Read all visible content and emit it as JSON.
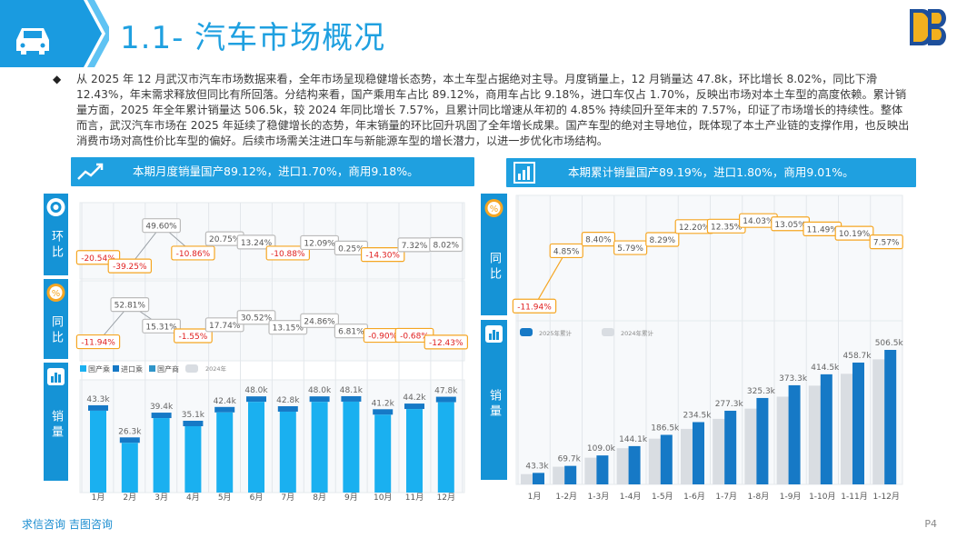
{
  "header": {
    "title": "1.1- 汽车市场概况",
    "page": "P4",
    "footer_brand": "求信咨询 吉图咨询"
  },
  "summary": "从 2025 年 12 月武汉市汽车市场数据来看，全年市场呈现稳健增长态势，本土车型占据绝对主导。月度销量上，12 月销量达 47.8k，环比增长 8.02%，同比下滑 12.43%，年末需求释放但同比有所回落。分结构来看，国产乘用车占比 89.12%，商用车占比 9.18%，进口车仅占 1.70%，反映出市场对本土车型的高度依赖。累计销量方面，2025 年全年累计销量达 506.5k，较 2024 年同比增长 7.57%，且累计同比增速从年初的 4.85% 持续回升至年末的 7.57%，印证了市场增长的持续性。整体而言，武汉汽车市场在 2025 年延续了稳健增长的态势，年末销量的环比回升巩固了全年增长成果。国产车型的绝对主导地位，既体现了本土产业链的支撑作用，也反映出消费市场对高性价比车型的偏好。后续市场需关注进口车与新能源车型的增长潜力，以进一步优化市场结构。",
  "left_panel": {
    "headline": "本期月度销量国产89.12%，进口1.70%，商用9.18%。",
    "tabs": {
      "hb": "环比",
      "tb": "同比",
      "xl": "销量"
    },
    "legend": [
      "国产乘",
      "进口乘",
      "国产商",
      "2024年"
    ]
  },
  "right_panel": {
    "headline": "本期累计销量国产89.19%，进口1.80%，商用9.01%。",
    "tabs": {
      "tb": "同比",
      "xl": "销量"
    },
    "legend": [
      "2025年累计",
      "2024年累计"
    ]
  },
  "colors": {
    "accent": "#1fa0e0",
    "bar2025": "#1679c6",
    "bar_cyan": "#1ab0f0",
    "bar2024": "#d9dde2",
    "pos": "#555555",
    "neg": "#e02020",
    "orange": "#f5a623"
  },
  "chart_data": [
    {
      "type": "line",
      "name": "monthly_mom",
      "categories": [
        "1月",
        "2月",
        "3月",
        "4月",
        "5月",
        "6月",
        "7月",
        "8月",
        "9月",
        "10月",
        "11月",
        "12月"
      ],
      "labels": [
        "-20.54%",
        "-39.25%",
        "49.60%",
        "-10.86%",
        "20.75%",
        "13.24%",
        "-10.88%",
        "12.09%",
        "0.25%",
        "-14.30%",
        "7.32%",
        "8.02%"
      ],
      "values": [
        -20.54,
        -39.25,
        49.6,
        -10.86,
        20.75,
        13.24,
        -10.88,
        12.09,
        0.25,
        -14.3,
        7.32,
        8.02
      ]
    },
    {
      "type": "line",
      "name": "monthly_yoy",
      "categories": [
        "1月",
        "2月",
        "3月",
        "4月",
        "5月",
        "6月",
        "7月",
        "8月",
        "9月",
        "10月",
        "11月",
        "12月"
      ],
      "labels": [
        "-11.94%",
        "52.81%",
        "15.31%",
        "-1.55%",
        "17.74%",
        "30.52%",
        "13.15%",
        "24.86%",
        "6.81%",
        "-0.90%",
        "-0.68%",
        "-12.43%"
      ],
      "values": [
        -11.94,
        52.81,
        15.31,
        -1.55,
        17.74,
        30.52,
        13.15,
        24.86,
        6.81,
        -0.9,
        -0.68,
        -12.43
      ]
    },
    {
      "type": "bar",
      "name": "monthly_sales",
      "categories": [
        "1月",
        "2月",
        "3月",
        "4月",
        "5月",
        "6月",
        "7月",
        "8月",
        "9月",
        "10月",
        "11月",
        "12月"
      ],
      "labels": [
        "43.3k",
        "26.3k",
        "39.4k",
        "35.1k",
        "42.4k",
        "48.0k",
        "42.8k",
        "48.0k",
        "48.1k",
        "41.2k",
        "44.2k",
        "47.8k"
      ],
      "values": [
        43.3,
        26.3,
        39.4,
        35.1,
        42.4,
        48.0,
        42.8,
        48.0,
        48.1,
        41.2,
        44.2,
        47.8
      ]
    },
    {
      "type": "line",
      "name": "cumulative_yoy",
      "categories": [
        "1月",
        "1-2月",
        "1-3月",
        "1-4月",
        "1-5月",
        "1-6月",
        "1-7月",
        "1-8月",
        "1-9月",
        "1-10月",
        "1-11月",
        "1-12月"
      ],
      "labels": [
        "-11.94%",
        "4.85%",
        "8.40%",
        "5.79%",
        "8.29%",
        "12.20%",
        "12.35%",
        "14.03%",
        "13.05%",
        "11.49%",
        "10.19%",
        "7.57%"
      ],
      "values": [
        -11.94,
        4.85,
        8.4,
        5.79,
        8.29,
        12.2,
        12.35,
        14.03,
        13.05,
        11.49,
        10.19,
        7.57
      ]
    },
    {
      "type": "bar",
      "name": "cumulative_sales",
      "categories": [
        "1月",
        "1-2月",
        "1-3月",
        "1-4月",
        "1-5月",
        "1-6月",
        "1-7月",
        "1-8月",
        "1-9月",
        "1-10月",
        "1-11月",
        "1-12月"
      ],
      "labels": [
        "43.3k",
        "69.7k",
        "109.0k",
        "144.1k",
        "186.5k",
        "234.5k",
        "277.3k",
        "325.3k",
        "373.3k",
        "414.5k",
        "458.7k",
        "506.5k"
      ],
      "series": [
        {
          "name": "2025年累计",
          "values": [
            43.3,
            69.7,
            109.0,
            144.1,
            186.5,
            234.5,
            277.3,
            325.3,
            373.3,
            414.5,
            458.7,
            506.5
          ]
        },
        {
          "name": "2024年累计",
          "values": [
            38.7,
            66.5,
            100.6,
            136.2,
            172.2,
            209.0,
            246.8,
            285.3,
            330.2,
            371.8,
            416.4,
            470.9
          ]
        }
      ]
    }
  ]
}
